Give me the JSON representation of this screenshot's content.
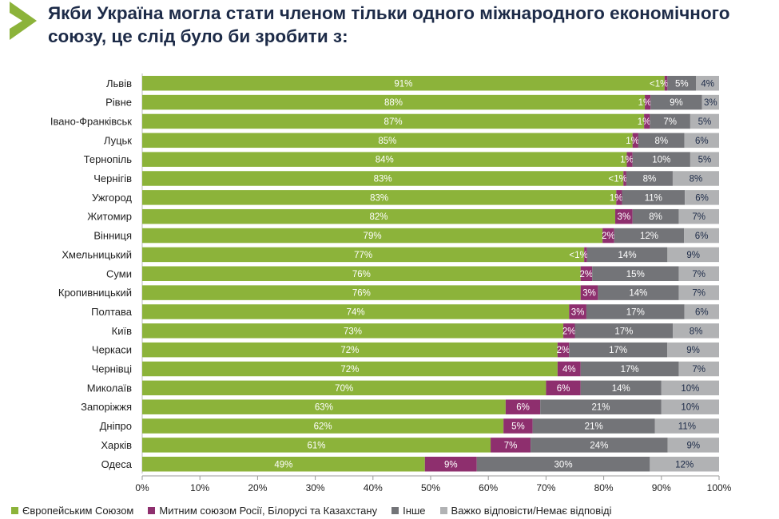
{
  "title": "Якби Україна могла стати членом тільки одного міжнародного економічного союзу, це слід було би зробити з:",
  "chart_data": {
    "type": "bar",
    "orientation": "horizontal",
    "stacked": true,
    "title": "Якби Україна могла стати членом тільки одного міжнародного економічного союзу, це слід було би зробити з:",
    "xlim": [
      0,
      100
    ],
    "xticks": [
      "0%",
      "10%",
      "20%",
      "30%",
      "40%",
      "50%",
      "60%",
      "70%",
      "80%",
      "90%",
      "100%"
    ],
    "legend_position": "bottom",
    "categories": [
      "Львів",
      "Рівне",
      "Івано-Франківськ",
      "Луцьк",
      "Тернопіль",
      "Чернігів",
      "Ужгород",
      "Житомир",
      "Вінниця",
      "Хмельницький",
      "Суми",
      "Кропивницький",
      "Полтава",
      "Київ",
      "Черкаси",
      "Чернівці",
      "Миколаїв",
      "Запоріжжя",
      "Дніпро",
      "Харків",
      "Одеса"
    ],
    "series": [
      {
        "name": "Європейським Союзом",
        "color": "#8cb33a",
        "label_color": "#ffffff",
        "values": [
          91,
          88,
          87,
          85,
          84,
          83,
          83,
          82,
          79,
          77,
          76,
          76,
          74,
          73,
          72,
          72,
          70,
          63,
          62,
          61,
          49
        ],
        "labels": [
          "91%",
          "88%",
          "87%",
          "85%",
          "84%",
          "83%",
          "83%",
          "82%",
          "79%",
          "77%",
          "76%",
          "76%",
          "74%",
          "73%",
          "72%",
          "72%",
          "70%",
          "63%",
          "62%",
          "61%",
          "49%"
        ]
      },
      {
        "name": "Митним союзом Росії, Білорусі та Казахстану",
        "color": "#8e2f6e",
        "label_color": "#ffffff",
        "values": [
          0.5,
          1,
          1,
          1,
          1,
          0.5,
          1,
          3,
          2,
          0.5,
          2,
          3,
          3,
          2,
          2,
          4,
          6,
          6,
          5,
          7,
          9
        ],
        "labels": [
          "<1%",
          "1%",
          "1%",
          "1%",
          "1%",
          "<1%",
          "1%",
          "3%",
          "2%",
          "<1%",
          "2%",
          "3%",
          "3%",
          "2%",
          "2%",
          "4%",
          "6%",
          "6%",
          "5%",
          "7%",
          "9%"
        ]
      },
      {
        "name": "Інше",
        "color": "#737478",
        "label_color": "#ffffff",
        "values": [
          5,
          9,
          7,
          8,
          10,
          8,
          11,
          8,
          12,
          14,
          15,
          14,
          17,
          17,
          17,
          17,
          14,
          21,
          21,
          24,
          30
        ],
        "labels": [
          "5%",
          "9%",
          "7%",
          "8%",
          "10%",
          "8%",
          "11%",
          "8%",
          "12%",
          "14%",
          "15%",
          "14%",
          "17%",
          "17%",
          "17%",
          "17%",
          "14%",
          "21%",
          "21%",
          "24%",
          "30%"
        ]
      },
      {
        "name": "Важко відповісти/Немає відповіді",
        "color": "#b1b2b4",
        "label_color": "#1d2b48",
        "values": [
          4,
          3,
          5,
          6,
          5,
          8,
          6,
          7,
          6,
          9,
          7,
          7,
          6,
          8,
          9,
          7,
          10,
          10,
          11,
          9,
          12
        ],
        "labels": [
          "4%",
          "3%",
          "5%",
          "6%",
          "5%",
          "8%",
          "6%",
          "7%",
          "6%",
          "9%",
          "7%",
          "7%",
          "6%",
          "8%",
          "9%",
          "7%",
          "10%",
          "10%",
          "11%",
          "9%",
          "12%"
        ]
      }
    ]
  }
}
